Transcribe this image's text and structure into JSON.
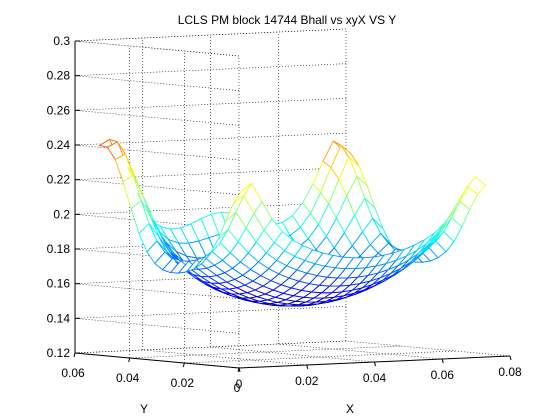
{
  "chart_data": {
    "type": "surface",
    "title": "LCLS PM block 14744 Bhall vs xyX VS Y",
    "xlabel": "X",
    "ylabel": "Y",
    "zlabel": "",
    "xlim": [
      0,
      0.08
    ],
    "ylim": [
      0,
      0.06
    ],
    "zlim": [
      0.12,
      0.3
    ],
    "x_ticks": [
      "0",
      "0.02",
      "0.04",
      "0.06",
      "0.08"
    ],
    "y_ticks": [
      "0",
      "0.02",
      "0.04",
      "0.06"
    ],
    "z_ticks": [
      "0.12",
      "0.14",
      "0.16",
      "0.18",
      "0.2",
      "0.22",
      "0.24",
      "0.26",
      "0.28",
      "0.3"
    ],
    "grid": true,
    "colormap": "jet",
    "mesh": "wireframe surface",
    "surface_summary": {
      "min_z_approx": 0.148,
      "max_z_approx": 0.263,
      "center_min_location": [
        0.035,
        0.03
      ],
      "corner_peaks_z": [
        0.26,
        0.262,
        0.255,
        0.255
      ]
    }
  }
}
